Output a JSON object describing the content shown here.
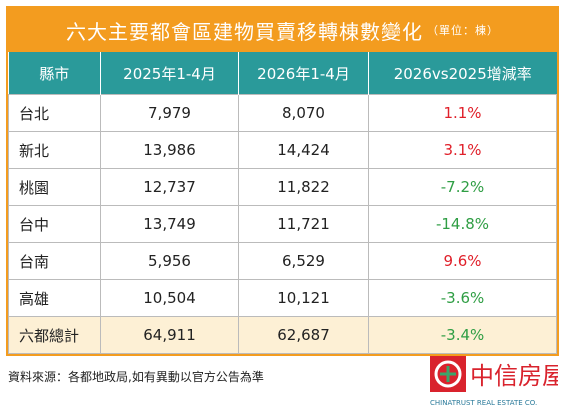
{
  "header": {
    "title": "六大主要都會區建物買賣移轉棟數變化",
    "unit": "（單位：棟）"
  },
  "table": {
    "columns": [
      "縣市",
      "2025年1-4月",
      "2026年1-4月",
      "2026vs2025增減率"
    ],
    "rows": [
      [
        "台北",
        "7,979",
        "8,070",
        "1.1%"
      ],
      [
        "新北",
        "13,986",
        "14,424",
        "3.1%"
      ],
      [
        "桃園",
        "12,737",
        "11,822",
        "-7.2%"
      ],
      [
        "台中",
        "13,749",
        "11,721",
        "-14.8%"
      ],
      [
        "台南",
        "5,956",
        "6,529",
        "9.6%"
      ],
      [
        "高雄",
        "10,504",
        "10,121",
        "-3.6%"
      ]
    ],
    "total": [
      "六都總計",
      "64,911",
      "62,687",
      "-3.4%"
    ]
  },
  "colors": {
    "increase": "#e0202a",
    "decrease": "#2f9e44"
  },
  "source": "資料來源：各都地政局,如有異動以官方公告為準",
  "logo": {
    "name": "中信房屋",
    "english": "CHINATRUST REAL ESTATE CO."
  }
}
